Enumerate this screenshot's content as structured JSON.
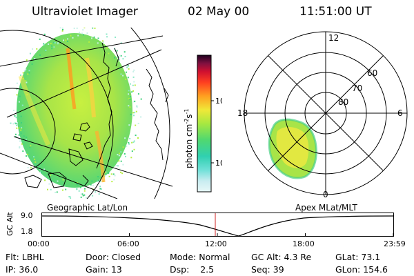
{
  "header": {
    "instrument": "Ultraviolet Imager",
    "date": "02 May 00",
    "time": "11:51:00 UT"
  },
  "map": {
    "left_label": "Geographic Lat/Lon",
    "right_label": "Apex MLat/MLT"
  },
  "colorbar": {
    "unit_label": "photon cm",
    "unit_exp1": "-2",
    "unit_s": "s",
    "unit_exp2": "-1",
    "ticks": [
      "100",
      "10"
    ]
  },
  "polar": {
    "mlt_labels": {
      "top": "12",
      "left": "18",
      "right": "6",
      "bottom": "0"
    },
    "lat_labels": [
      "60",
      "70",
      "80"
    ]
  },
  "timeline": {
    "y_label": "GC Alt",
    "y_ticks": [
      "9.0",
      "1.8"
    ],
    "x_ticks": [
      "00:00",
      "06:00",
      "12:00",
      "18:00",
      "23:59"
    ],
    "marker_time": "11:51"
  },
  "footer": {
    "row1": [
      {
        "label": "Flt:",
        "value": "LBHL"
      },
      {
        "label": "Door:",
        "value": "Closed"
      },
      {
        "label": "Mode:",
        "value": "Normal"
      },
      {
        "label": "GC Alt:",
        "value": "4.3 Re"
      },
      {
        "label": "GLat:",
        "value": "73.1"
      }
    ],
    "row2": [
      {
        "label": "IP:",
        "value": "36.0"
      },
      {
        "label": "Gain:",
        "value": "13"
      },
      {
        "label": "Dsp:",
        "value": "2.5"
      },
      {
        "label": "Seq:",
        "value": "39"
      },
      {
        "label": "GLon:",
        "value": "154.6"
      }
    ]
  },
  "colors": {
    "marker": "#d02020",
    "aurora_low": "#3fd07a",
    "aurora_mid": "#b8ee40",
    "aurora_high": "#f0e040",
    "aurora_peak": "#ff9a20"
  }
}
